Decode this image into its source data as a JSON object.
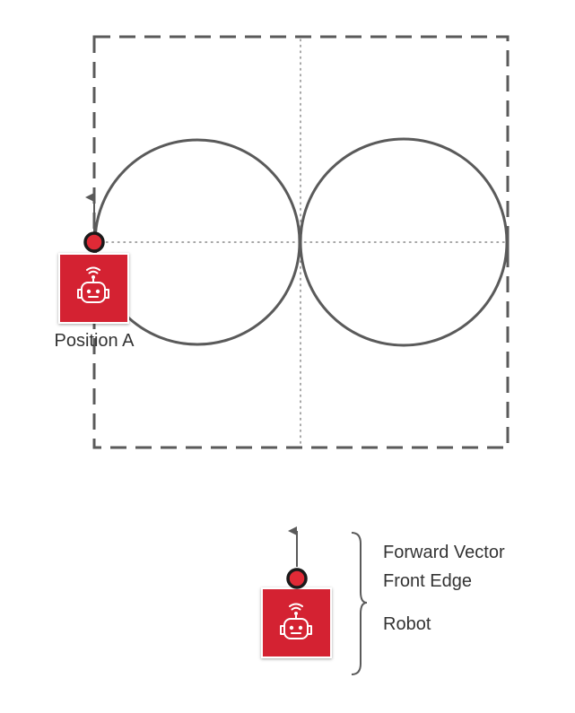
{
  "field": {
    "border_color": "#5a5a5a",
    "path_color": "#5a5a5a",
    "guide_color": "#8a8a8a"
  },
  "robot": {
    "tile_color": "#d42430",
    "icon_color": "#ffffff",
    "marker_color": "#e02a36",
    "icon": "robot-head-wifi-icon"
  },
  "labels": {
    "position_a": "Position A",
    "forward_vector": "Forward Vector",
    "front_edge": "Front Edge",
    "robot": "Robot"
  }
}
